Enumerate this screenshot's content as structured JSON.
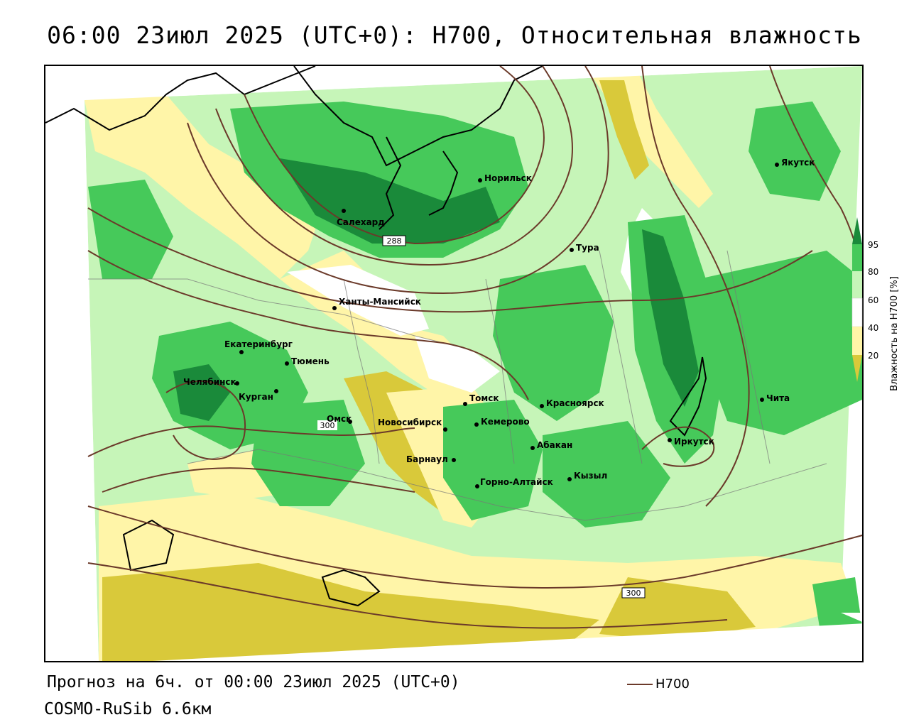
{
  "title": "06:00 23июл 2025 (UTC+0): H700, Относительная влажность",
  "forecast_note": "Прогноз на 6ч. от 00:00 23июл 2025 (UTC+0)",
  "model_name": "COSMO-RuSib 6.6км",
  "legend": {
    "line_label": "H700",
    "line_color": "#6b3a2a"
  },
  "colorbar": {
    "title": "Влажность на H700 [%]",
    "ticks": [
      "95",
      "80",
      "60",
      "40",
      "20"
    ],
    "colors": {
      "very_dry": "#d9c93a",
      "dry": "#fff5a8",
      "neutral": "#ffffff",
      "moist": "#c6f5b8",
      "wet": "#46c95a",
      "very_wet": "#1a8a3a"
    }
  },
  "cities": [
    {
      "name": "Якутск"
    },
    {
      "name": "Норильск"
    },
    {
      "name": "Салехард"
    },
    {
      "name": "Тура"
    },
    {
      "name": "Ханты-Мансийск"
    },
    {
      "name": "Екатеринбург"
    },
    {
      "name": "Тюмень"
    },
    {
      "name": "Челябинск"
    },
    {
      "name": "Курган"
    },
    {
      "name": "Омск"
    },
    {
      "name": "Новосибирск"
    },
    {
      "name": "Томск"
    },
    {
      "name": "Кемерово"
    },
    {
      "name": "Красноярск"
    },
    {
      "name": "Барнаул"
    },
    {
      "name": "Абакан"
    },
    {
      "name": "Кызыл"
    },
    {
      "name": "Горно-Алтайск"
    },
    {
      "name": "Иркутск"
    },
    {
      "name": "Чита"
    }
  ],
  "contour_labels": [
    "288",
    "300",
    "300"
  ]
}
